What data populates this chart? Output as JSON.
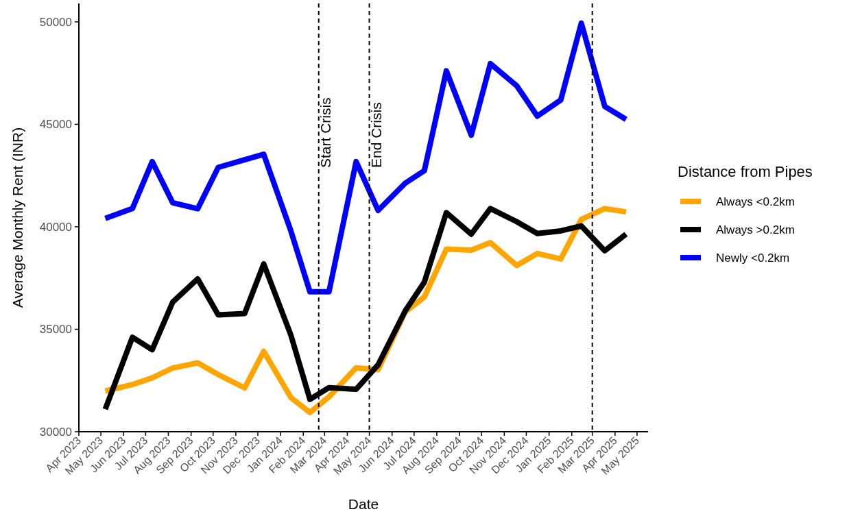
{
  "chart_data": {
    "type": "line",
    "xlabel": "Date",
    "ylabel": "Average Monthly Rent (INR)",
    "legend_title": "Distance from Pipes",
    "legend": "right",
    "grid": false,
    "line_style": "solid",
    "x": [
      "2023-05-07",
      "2023-06-13",
      "2023-07-10",
      "2023-08-07",
      "2023-09-10",
      "2023-10-08",
      "2023-11-13",
      "2023-12-09",
      "2024-01-15",
      "2024-02-10",
      "2024-03-07",
      "2024-04-13",
      "2024-05-13",
      "2024-06-19",
      "2024-07-15",
      "2024-08-14",
      "2024-09-17",
      "2024-10-13",
      "2024-11-18",
      "2024-12-16",
      "2025-01-17",
      "2025-02-14",
      "2025-03-18",
      "2025-04-16"
    ],
    "series": [
      {
        "name": "Always <0.2km",
        "color": "#ffa500",
        "values": [
          31990,
          32300,
          32630,
          33110,
          33360,
          32790,
          32140,
          33920,
          31670,
          30940,
          31700,
          33120,
          33030,
          35850,
          36580,
          38910,
          38860,
          39230,
          38110,
          38700,
          38430,
          40360,
          40890,
          40730
        ]
      },
      {
        "name": "Always >0.2km",
        "color": "#000000",
        "values": [
          31100,
          34610,
          34000,
          36330,
          37460,
          35700,
          35770,
          38190,
          34720,
          31580,
          32150,
          32070,
          33270,
          35900,
          37300,
          40690,
          39640,
          40890,
          40250,
          39670,
          39800,
          40040,
          38830,
          39640
        ]
      },
      {
        "name": "Newly <0.2km",
        "color": "#0000ff",
        "values": [
          40410,
          40890,
          43180,
          41170,
          40880,
          42900,
          43270,
          43540,
          39800,
          36830,
          36830,
          43180,
          40800,
          42130,
          42740,
          47610,
          44470,
          47960,
          46880,
          45400,
          46190,
          49940,
          45870,
          45240
        ]
      }
    ],
    "xlim": [
      "2023-04-01",
      "2025-05-16"
    ],
    "ylim": [
      30000,
      50900
    ],
    "xticks": [
      {
        "value": "2023-04-01",
        "label": "Apr 2023"
      },
      {
        "value": "2023-05-01",
        "label": "May 2023"
      },
      {
        "value": "2023-06-01",
        "label": "Jun 2023"
      },
      {
        "value": "2023-07-01",
        "label": "Jul 2023"
      },
      {
        "value": "2023-08-01",
        "label": "Aug 2023"
      },
      {
        "value": "2023-09-01",
        "label": "Sep 2023"
      },
      {
        "value": "2023-10-01",
        "label": "Oct 2023"
      },
      {
        "value": "2023-11-01",
        "label": "Nov 2023"
      },
      {
        "value": "2023-12-01",
        "label": "Dec 2023"
      },
      {
        "value": "2024-01-01",
        "label": "Jan 2024"
      },
      {
        "value": "2024-02-01",
        "label": "Feb 2024"
      },
      {
        "value": "2024-03-01",
        "label": "Mar 2024"
      },
      {
        "value": "2024-04-01",
        "label": "Apr 2024"
      },
      {
        "value": "2024-05-01",
        "label": "May 2024"
      },
      {
        "value": "2024-06-01",
        "label": "Jun 2024"
      },
      {
        "value": "2024-07-01",
        "label": "Jul 2024"
      },
      {
        "value": "2024-08-01",
        "label": "Aug 2024"
      },
      {
        "value": "2024-09-01",
        "label": "Sep 2024"
      },
      {
        "value": "2024-10-01",
        "label": "Oct 2024"
      },
      {
        "value": "2024-11-01",
        "label": "Nov 2024"
      },
      {
        "value": "2024-12-01",
        "label": "Dec 2024"
      },
      {
        "value": "2025-01-01",
        "label": "Jan 2025"
      },
      {
        "value": "2025-02-01",
        "label": "Feb 2025"
      },
      {
        "value": "2025-03-01",
        "label": "Mar 2025"
      },
      {
        "value": "2025-04-01",
        "label": "Apr 2025"
      },
      {
        "value": "2025-05-01",
        "label": "May 2025"
      }
    ],
    "yticks": [
      30000,
      35000,
      40000,
      45000,
      50000
    ],
    "ref_lines": [
      {
        "axis": "x",
        "value": "2024-02-22",
        "label": "Start Crisis",
        "color": "#000000",
        "line_style": "dashed"
      },
      {
        "axis": "x",
        "value": "2024-05-01",
        "label": "End Crisis",
        "color": "#000000",
        "line_style": "dashed"
      },
      {
        "axis": "x",
        "value": "2025-03-01",
        "color": "#000000",
        "line_style": "dashed"
      }
    ]
  }
}
